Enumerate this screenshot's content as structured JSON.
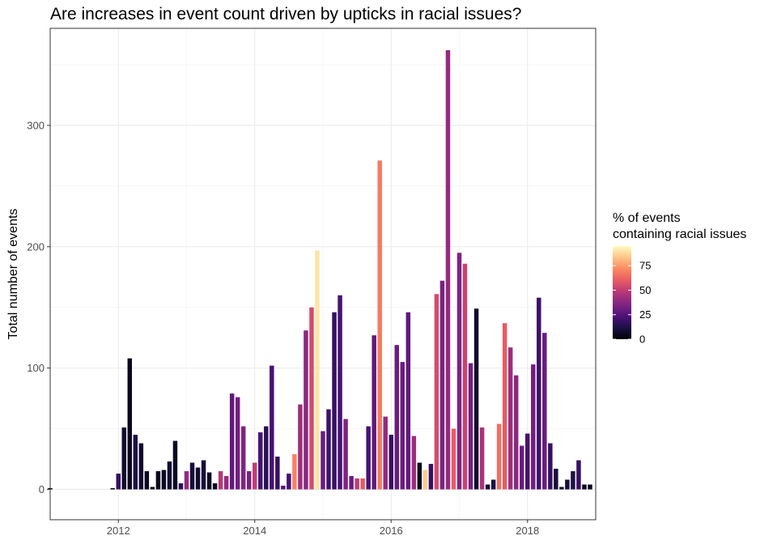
{
  "chart_data": {
    "type": "bar",
    "title": "Are increases in event count driven by upticks in racial issues?",
    "xlabel": "",
    "ylabel": "Total number of events",
    "xlim": [
      2011.0,
      2019.0
    ],
    "ylim": [
      -25,
      380
    ],
    "x_ticks": [
      2012,
      2014,
      2016,
      2018
    ],
    "x_tick_labels": [
      "2012",
      "2014",
      "2016",
      "2018"
    ],
    "y_ticks": [
      0,
      100,
      200,
      300
    ],
    "y_tick_labels": [
      "0",
      "100",
      "200",
      "300"
    ],
    "grid": true,
    "legend": {
      "title_lines": [
        "% of events",
        "containing racial issues"
      ],
      "ticks": [
        0,
        25,
        50,
        75
      ],
      "tick_labels": [
        "0",
        "25",
        "50",
        "75"
      ],
      "range": [
        0,
        95
      ],
      "placement": "right"
    },
    "colormap": [
      "#000004",
      "#1c1044",
      "#4f127b",
      "#812581",
      "#b5367a",
      "#e55964",
      "#fb8761",
      "#fec287",
      "#fcfdbf"
    ],
    "series": [
      {
        "x": [
          "2011-01",
          "2011-12",
          "2012-01",
          "2012-02",
          "2012-03",
          "2012-04",
          "2012-05",
          "2012-06",
          "2012-07",
          "2012-08",
          "2012-09",
          "2012-10",
          "2012-11",
          "2012-12",
          "2013-01",
          "2013-02",
          "2013-03",
          "2013-04",
          "2013-05",
          "2013-06",
          "2013-07",
          "2013-08",
          "2013-09",
          "2013-10",
          "2013-11",
          "2013-12",
          "2014-01",
          "2014-02",
          "2014-03",
          "2014-04",
          "2014-05",
          "2014-06",
          "2014-07",
          "2014-08",
          "2014-09",
          "2014-10",
          "2014-11",
          "2014-12",
          "2015-01",
          "2015-02",
          "2015-03",
          "2015-04",
          "2015-05",
          "2015-06",
          "2015-07",
          "2015-08",
          "2015-09",
          "2015-10",
          "2015-11",
          "2015-12",
          "2016-01",
          "2016-02",
          "2016-03",
          "2016-04",
          "2016-05",
          "2016-06",
          "2016-07",
          "2016-08",
          "2016-09",
          "2016-10",
          "2016-11",
          "2016-12",
          "2017-01",
          "2017-02",
          "2017-03",
          "2017-04",
          "2017-05",
          "2017-06",
          "2017-07",
          "2017-08",
          "2017-09",
          "2017-10",
          "2017-11",
          "2017-12",
          "2018-01",
          "2018-02",
          "2018-03",
          "2018-04",
          "2018-05",
          "2018-06",
          "2018-07",
          "2018-08",
          "2018-09",
          "2018-10",
          "2018-11",
          "2018-12"
        ],
        "values": [
          1,
          1,
          13,
          51,
          108,
          45,
          38,
          15,
          2,
          15,
          16,
          23,
          40,
          5,
          15,
          22,
          18,
          24,
          14,
          5,
          15,
          11,
          79,
          76,
          52,
          15,
          22,
          47,
          52,
          102,
          27,
          3,
          13,
          29,
          70,
          131,
          150,
          197,
          48,
          66,
          146,
          160,
          58,
          11,
          9,
          9,
          52,
          127,
          271,
          60,
          45,
          119,
          105,
          146,
          44,
          22,
          16,
          21,
          161,
          172,
          362,
          50,
          195,
          186,
          104,
          149,
          51,
          4,
          8,
          54,
          137,
          117,
          94,
          36,
          46,
          103,
          158,
          129,
          38,
          17,
          2,
          8,
          15,
          24,
          4,
          4
        ],
        "pct": [
          2,
          2,
          18,
          8,
          5,
          12,
          8,
          6,
          2,
          5,
          6,
          8,
          6,
          15,
          40,
          10,
          8,
          10,
          6,
          5,
          48,
          40,
          28,
          32,
          35,
          34,
          50,
          22,
          15,
          22,
          18,
          25,
          22,
          70,
          42,
          38,
          55,
          90,
          30,
          20,
          18,
          22,
          35,
          30,
          50,
          60,
          22,
          28,
          68,
          40,
          18,
          30,
          30,
          28,
          42,
          4,
          85,
          18,
          55,
          34,
          40,
          60,
          35,
          52,
          32,
          8,
          45,
          8,
          12,
          65,
          60,
          42,
          38,
          30,
          22,
          32,
          20,
          30,
          18,
          10,
          5,
          10,
          12,
          18,
          5,
          5
        ]
      }
    ]
  }
}
